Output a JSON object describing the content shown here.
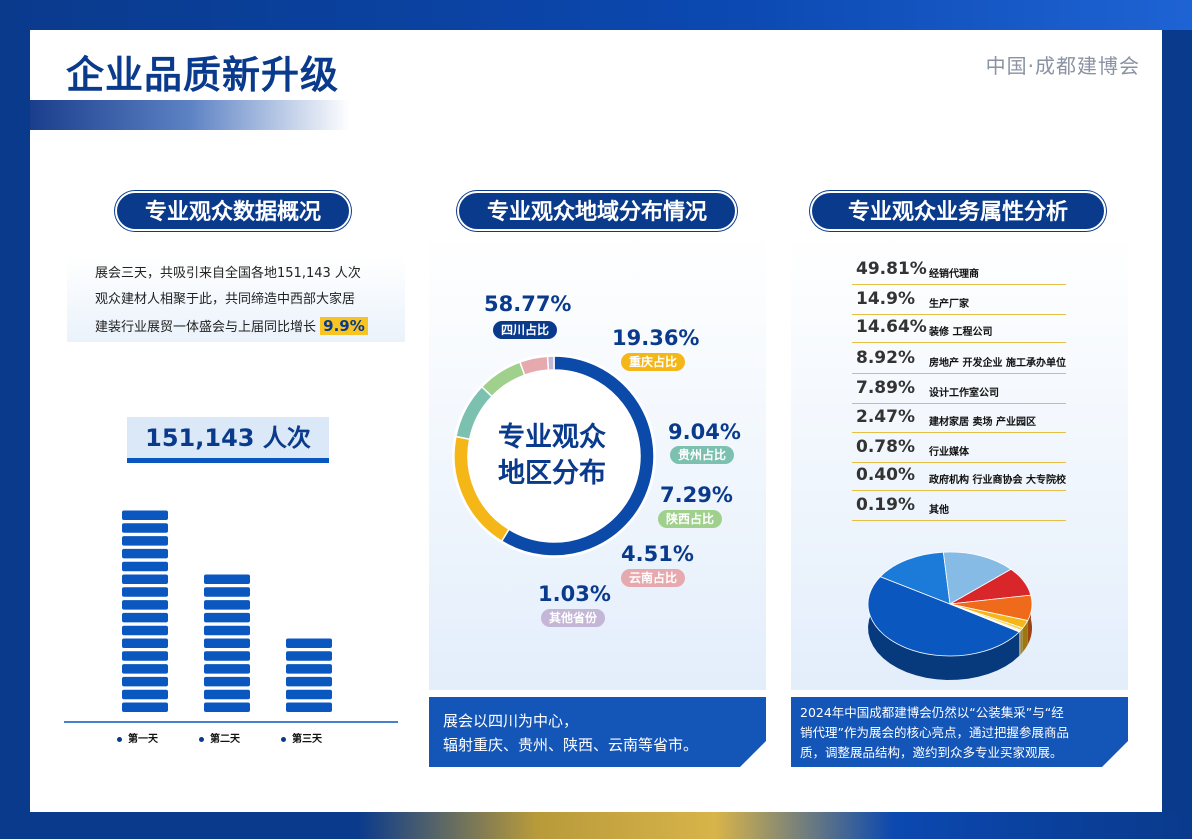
{
  "page": {
    "title": "企业品质新升级",
    "brand": "中国·成都建博会"
  },
  "colors": {
    "primary": "#0a3a8c",
    "accent": "#f7c422",
    "bar": "#0b57c0"
  },
  "sections": {
    "overview": {
      "title": "专业观众数据概况",
      "intro": [
        "展会三天，共吸引来自全国各地151,143 人次",
        "观众建材人相聚于此，共同缔造中西部大家居",
        "建装行业展贸一体盛会与上届同比增长"
      ],
      "growth": "9.9%",
      "total": "151,143 人次"
    },
    "region": {
      "title": "专业观众地域分布情况",
      "center": [
        "专业观众",
        "地区分布"
      ],
      "note": [
        "展会以四川为中心，",
        "辐射重庆、贵州、陕西、云南等省市。"
      ]
    },
    "business": {
      "title": "专业观众业务属性分析",
      "note": [
        "2024年中国成都建博会仍然以“公装集采”与“经",
        "销代理”作为展会的核心亮点，通过把握参展商品",
        "质，调整展品结构，邀约到众多专业买家观展。"
      ]
    }
  },
  "chart_data": [
    {
      "type": "bar",
      "categories": [
        "第一天",
        "第二天",
        "第三天"
      ],
      "values": [
        16,
        11,
        6
      ]
    },
    {
      "type": "pie",
      "categories": [
        "四川占比",
        "重庆占比",
        "贵州占比",
        "陕西占比",
        "云南占比",
        "其他省份"
      ],
      "values": [
        58.77,
        19.36,
        9.04,
        7.29,
        4.51,
        1.03
      ],
      "labels": [
        "58.77%",
        "19.36%",
        "9.04%",
        "7.29%",
        "4.51%",
        "1.03%"
      ],
      "colors": [
        "#0b4aa8",
        "#f5b718",
        "#7cc0b0",
        "#9fd08c",
        "#e6a9ae",
        "#c4b6d6"
      ]
    },
    {
      "type": "pie",
      "categories": [
        "经销代理商",
        "生产厂家",
        "装修 工程公司",
        "房地产 开发企业 施工承办单位",
        "设计工作室公司",
        "建材家居 卖场 产业园区",
        "行业媒体",
        "政府机构 行业商协会 大专院校",
        "其他"
      ],
      "values": [
        49.81,
        14.9,
        14.64,
        8.92,
        7.89,
        2.47,
        0.78,
        0.4,
        0.19
      ],
      "labels": [
        "49.81%",
        "14.9%",
        "14.64%",
        "8.92%",
        "7.89%",
        "2.47%",
        "0.78%",
        "0.40%",
        "0.19%"
      ],
      "colors": [
        "#0b57c0",
        "#1c7ad8",
        "#86bbe6",
        "#d9262b",
        "#f06a1b",
        "#f5b718",
        "#f7d050",
        "#f2e08a",
        "#cfcfcf"
      ]
    }
  ]
}
